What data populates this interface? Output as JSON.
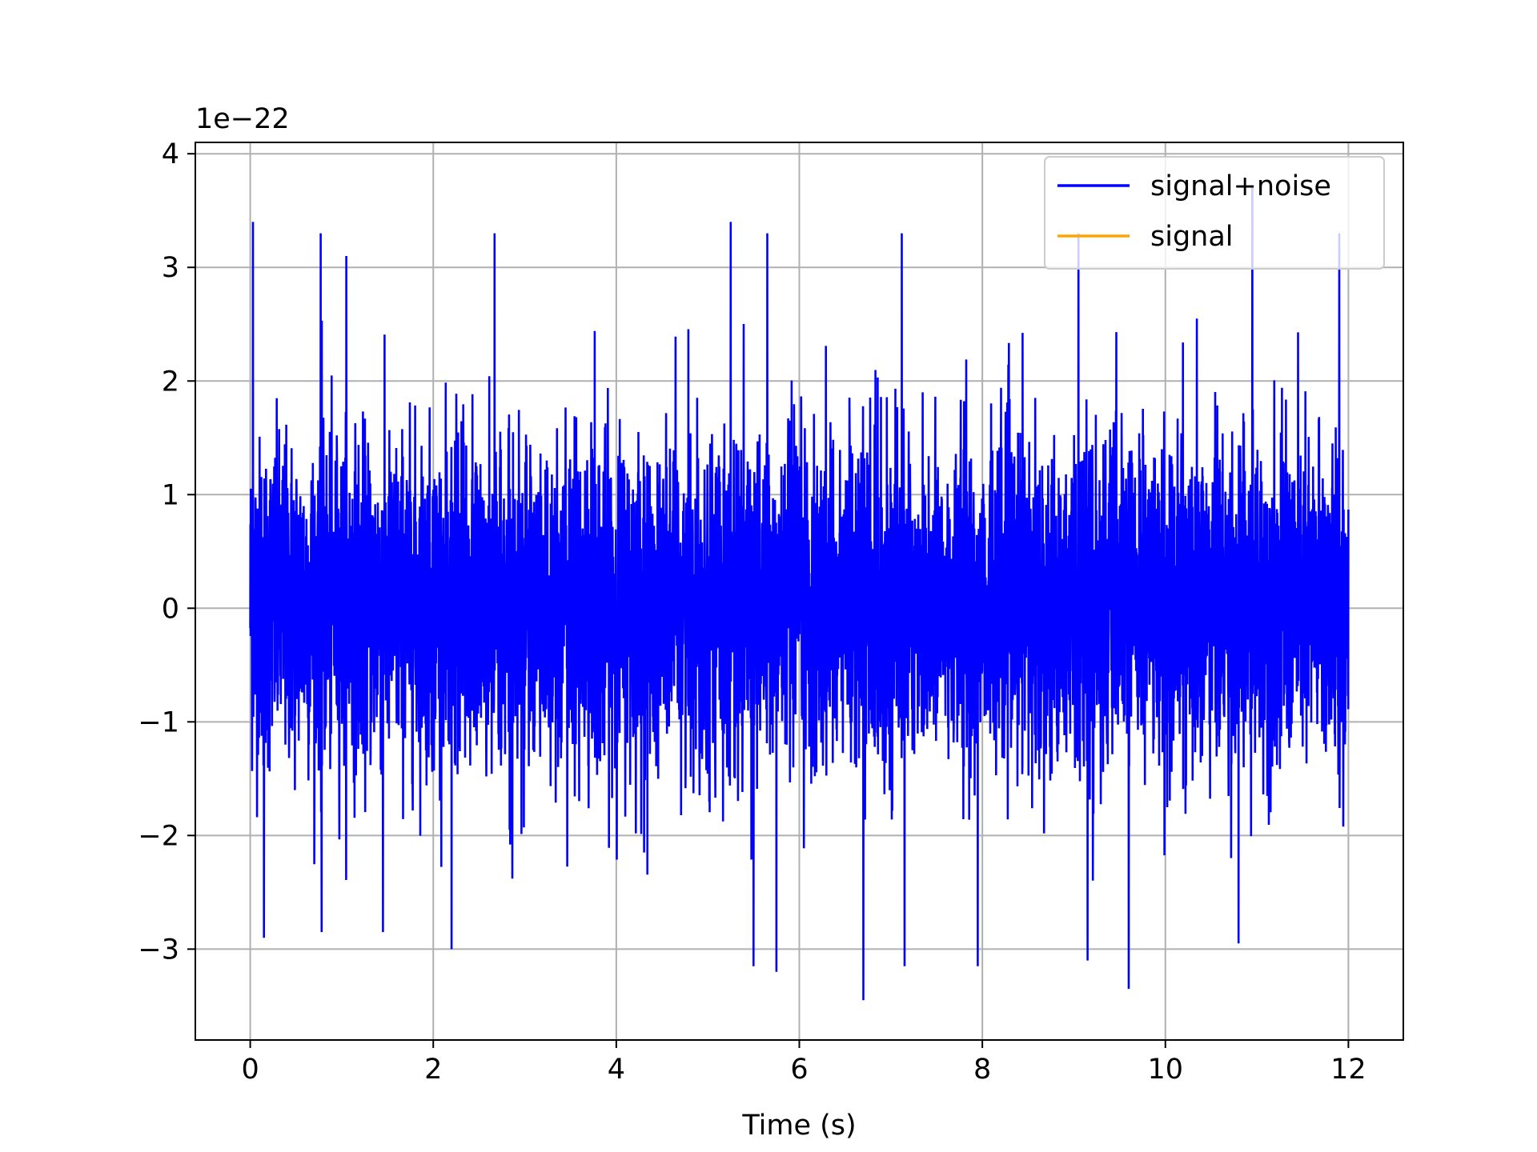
{
  "chart_data": {
    "type": "line",
    "title": "",
    "xlabel": "Time (s)",
    "ylabel": "",
    "y_offset_text": "1e−22",
    "y_scale_factor": 1e-22,
    "xlim": [
      -0.6,
      12.6
    ],
    "ylim": [
      -3.8,
      4.1
    ],
    "x_ticks": [
      0,
      2,
      4,
      6,
      8,
      10,
      12
    ],
    "x_tick_labels": [
      "0",
      "2",
      "4",
      "6",
      "8",
      "10",
      "12"
    ],
    "y_ticks": [
      -3,
      -2,
      -1,
      0,
      1,
      2,
      3,
      4
    ],
    "y_tick_labels": [
      "−3",
      "−2",
      "−1",
      "0",
      "1",
      "2",
      "3",
      "4"
    ],
    "grid": true,
    "legend": {
      "placement": "upper-right",
      "entries": [
        {
          "name": "signal+noise",
          "color": "#0000ff"
        },
        {
          "name": "signal",
          "color": "#ffa500"
        }
      ]
    },
    "series": [
      {
        "name": "signal+noise",
        "color": "#0000ff",
        "x_range": [
          0,
          12
        ],
        "typical_amplitude": [
          -1.8,
          2.0
        ],
        "peak_max": 3.7,
        "peak_min": -3.45,
        "spikes": [
          [
            0.03,
            3.4
          ],
          [
            0.77,
            3.3
          ],
          [
            1.05,
            3.1
          ],
          [
            2.67,
            3.3
          ],
          [
            5.25,
            3.4
          ],
          [
            5.65,
            3.3
          ],
          [
            7.12,
            3.3
          ],
          [
            9.05,
            3.3
          ],
          [
            10.95,
            3.7
          ],
          [
            11.9,
            3.3
          ],
          [
            0.15,
            -2.9
          ],
          [
            0.78,
            -2.85
          ],
          [
            1.45,
            -2.85
          ],
          [
            2.2,
            -3.0
          ],
          [
            5.5,
            -3.15
          ],
          [
            5.75,
            -3.2
          ],
          [
            6.7,
            -3.45
          ],
          [
            7.15,
            -3.15
          ],
          [
            7.95,
            -3.15
          ],
          [
            9.6,
            -3.35
          ],
          [
            9.15,
            -3.1
          ],
          [
            10.8,
            -2.95
          ]
        ]
      },
      {
        "name": "signal",
        "color": "#ffa500",
        "x_range": [
          0,
          12
        ],
        "note_values": [
          0,
          0
        ]
      }
    ]
  }
}
